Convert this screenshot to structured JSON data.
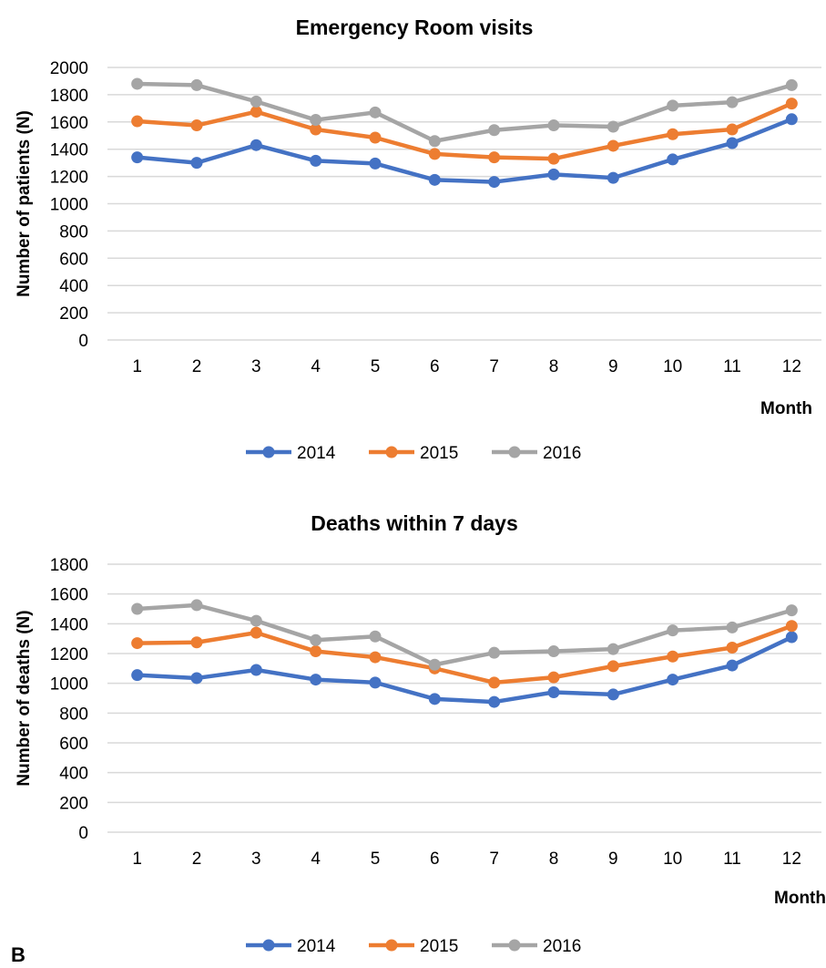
{
  "panel_label": "B",
  "chart_data": [
    {
      "type": "line",
      "title": "Emergency Room visits",
      "xlabel": "Month",
      "ylabel": "Number of patients (N)",
      "categories": [
        "1",
        "2",
        "3",
        "4",
        "5",
        "6",
        "7",
        "8",
        "9",
        "10",
        "11",
        "12"
      ],
      "ylim": [
        0,
        2000
      ],
      "yticks": [
        0,
        200,
        400,
        600,
        800,
        1000,
        1200,
        1400,
        1600,
        1800,
        2000
      ],
      "grid": true,
      "legend_position": "bottom",
      "series": [
        {
          "name": "2014",
          "color": "#4472C4",
          "values": [
            1340,
            1300,
            1430,
            1315,
            1295,
            1175,
            1160,
            1215,
            1190,
            1325,
            1445,
            1620
          ]
        },
        {
          "name": "2015",
          "color": "#ED7D31",
          "values": [
            1605,
            1575,
            1675,
            1545,
            1485,
            1365,
            1340,
            1330,
            1425,
            1510,
            1545,
            1735
          ]
        },
        {
          "name": "2016",
          "color": "#A5A5A5",
          "values": [
            1880,
            1870,
            1750,
            1615,
            1670,
            1460,
            1540,
            1575,
            1565,
            1720,
            1745,
            1870
          ]
        }
      ]
    },
    {
      "type": "line",
      "title": "Deaths within 7 days",
      "xlabel": "Month",
      "ylabel": "Number of deaths (N)",
      "categories": [
        "1",
        "2",
        "3",
        "4",
        "5",
        "6",
        "7",
        "8",
        "9",
        "10",
        "11",
        "12"
      ],
      "ylim": [
        0,
        1800
      ],
      "yticks": [
        0,
        200,
        400,
        600,
        800,
        1000,
        1200,
        1400,
        1600,
        1800
      ],
      "grid": true,
      "legend_position": "bottom",
      "series": [
        {
          "name": "2014",
          "color": "#4472C4",
          "values": [
            1055,
            1035,
            1090,
            1025,
            1005,
            895,
            875,
            940,
            925,
            1025,
            1120,
            1310
          ]
        },
        {
          "name": "2015",
          "color": "#ED7D31",
          "values": [
            1270,
            1275,
            1340,
            1215,
            1175,
            1100,
            1005,
            1040,
            1115,
            1180,
            1240,
            1385
          ]
        },
        {
          "name": "2016",
          "color": "#A5A5A5",
          "values": [
            1500,
            1525,
            1420,
            1290,
            1315,
            1125,
            1205,
            1215,
            1230,
            1355,
            1375,
            1490
          ]
        }
      ]
    }
  ]
}
